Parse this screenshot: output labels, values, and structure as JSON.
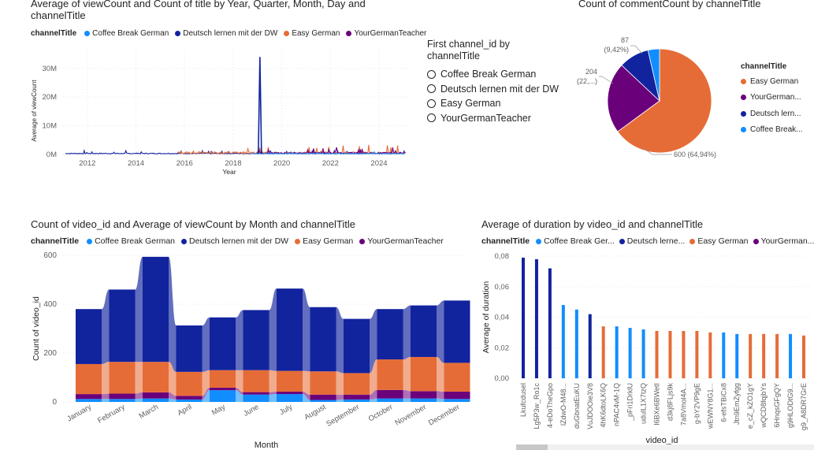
{
  "colors": {
    "Coffee Break German": "#118DFF",
    "Deutsch lernen mit der DW": "#12239E",
    "Easy German": "#E66C37",
    "YourGermanTeacher": "#6B007B"
  },
  "series_names": [
    "Coffee Break German",
    "Deutsch lernen mit der DW",
    "Easy German",
    "YourGermanTeacher"
  ],
  "legend_title": "channelTitle",
  "slicer": {
    "title_line1": "First channel_id by",
    "title_line2": "channelTitle",
    "items": [
      "Coffee Break German",
      "Deutsch lernen mit der DW",
      "Easy German",
      "YourGermanTeacher"
    ]
  },
  "pie_legend_items": [
    "Easy German",
    "YourGerman...",
    "Deutsch lern...",
    "Coffee Break..."
  ],
  "chart_data": [
    {
      "type": "line",
      "title_line1": "Average of viewCount and Count of title by Year, Quarter, Month, Day and",
      "title_line2": "channelTitle",
      "xlabel": "Year",
      "ylabel": "Average of viewCount",
      "x_ticks": [
        "2012",
        "2014",
        "2016",
        "2018",
        "2020",
        "2022",
        "2024"
      ],
      "y_ticks": [
        "0M",
        "10M",
        "20M",
        "30M"
      ],
      "xlim": [
        2011,
        2025.2
      ],
      "ylim": [
        0,
        36
      ],
      "notable_points": [
        {
          "series": "Deutsch lernen mit der DW",
          "x": 2019.1,
          "y": 34,
          "unit": "M"
        }
      ]
    },
    {
      "type": "pie",
      "title": "Count of commentCount by channelTitle",
      "slices": [
        {
          "name": "Easy German",
          "value": 600,
          "label": "600 (64,94%)"
        },
        {
          "name": "YourGermanTeacher",
          "value": 204,
          "label_line1": "204",
          "label_line2": "(22,...)"
        },
        {
          "name": "Deutsch lernen mit der DW",
          "value": 87,
          "label_line1": "87",
          "label_line2": "(9,42%)"
        },
        {
          "name": "Coffee Break German",
          "value": 33
        }
      ]
    },
    {
      "type": "area",
      "title": "Count of video_id and Average of viewCount by Month and channelTitle",
      "xlabel": "Month",
      "ylabel": "Count of video_id",
      "ylim": [
        0,
        600
      ],
      "y_ticks": [
        "0",
        "200",
        "400",
        "600"
      ],
      "categories": [
        "January",
        "February",
        "March",
        "April",
        "May",
        "June",
        "July",
        "August",
        "September",
        "October",
        "November",
        "December"
      ],
      "series": [
        {
          "name": "Coffee Break German",
          "values": [
            12,
            12,
            14,
            10,
            48,
            30,
            32,
            8,
            10,
            14,
            14,
            12
          ]
        },
        {
          "name": "YourGermanTeacher",
          "values": [
            20,
            22,
            25,
            15,
            10,
            10,
            10,
            22,
            20,
            35,
            30,
            30
          ]
        },
        {
          "name": "Easy German",
          "values": [
            123,
            130,
            125,
            98,
            72,
            90,
            85,
            95,
            88,
            125,
            140,
            118
          ]
        },
        {
          "name": "Deutsch lernen mit der DW",
          "values": [
            225,
            296,
            430,
            190,
            216,
            246,
            337,
            263,
            222,
            206,
            211,
            255
          ]
        }
      ]
    },
    {
      "type": "bar",
      "title": "Average of duration by video_id and channelTitle",
      "xlabel": "video_id",
      "ylabel": "Average of duration",
      "ylim": [
        0,
        0.08
      ],
      "y_ticks": [
        "0,00",
        "0,02",
        "0,04",
        "0,06",
        "0,08"
      ],
      "legend_labels": [
        "Coffee Break Ger...",
        "Deutsch lerne...",
        "Easy German",
        "YourGerman..."
      ],
      "categories": [
        "Lkufcdusel",
        "Lg5P3w_Ro1c",
        "4-eDoTheGpo",
        "lZdwO-M48...",
        "duGbnatEuKU",
        "VuJDOOie3V8",
        "4hK6dtoLK6Q",
        "nPAC4vM-1Q",
        "_pFri1DrklU",
        "udulL1X7tzQ",
        "I6BXe6BWetI",
        "d3kj8FLjs9k",
        "7a8Vmol4A...",
        "g-bY2VP9gE",
        "wEWNY8G1...",
        "6-efsTBiCx8",
        "Jtn9EmZyfgg",
        "e_cZ_kZO1gY",
        "wQCD8fqjbYs",
        "6HnqsGFgQY",
        "g9HLODtG9...",
        "g9_A8DR7GrE"
      ],
      "series_of_bars": [
        "Deutsch lernen mit der DW",
        "Deutsch lernen mit der DW",
        "Deutsch lernen mit der DW",
        "Coffee Break German",
        "Coffee Break German",
        "Deutsch lernen mit der DW",
        "Easy German",
        "Coffee Break German",
        "Coffee Break German",
        "Coffee Break German",
        "Easy German",
        "Easy German",
        "Easy German",
        "Easy German",
        "Easy German",
        "Coffee Break German",
        "Coffee Break German",
        "Easy German",
        "Easy German",
        "Easy German",
        "Coffee Break German",
        "Easy German"
      ],
      "values": [
        0.079,
        0.078,
        0.072,
        0.048,
        0.045,
        0.042,
        0.034,
        0.034,
        0.033,
        0.032,
        0.031,
        0.031,
        0.031,
        0.031,
        0.03,
        0.03,
        0.029,
        0.029,
        0.029,
        0.029,
        0.029,
        0.028
      ]
    }
  ]
}
